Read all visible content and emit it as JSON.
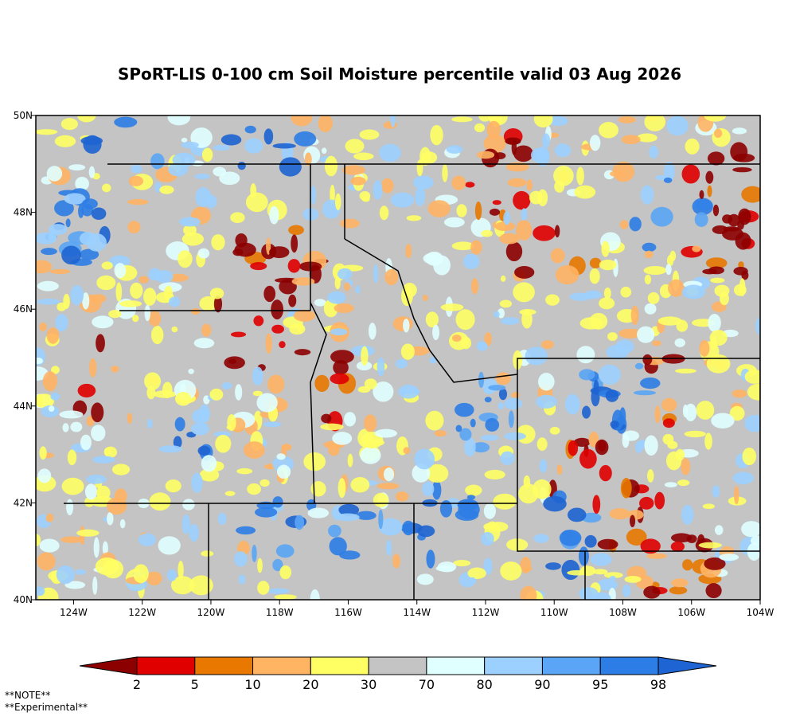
{
  "map": {
    "title": "SPoRT-LIS 0-100 cm Soil Moisture percentile valid 03 Aug 2026",
    "xlim": [
      -125.1,
      -104
    ],
    "ylim": [
      40,
      50
    ],
    "xticks": [
      {
        "value": -124,
        "label": "124W"
      },
      {
        "value": -122,
        "label": "122W"
      },
      {
        "value": -120,
        "label": "120W"
      },
      {
        "value": -118,
        "label": "118W"
      },
      {
        "value": -116,
        "label": "116W"
      },
      {
        "value": -114,
        "label": "114W"
      },
      {
        "value": -112,
        "label": "112W"
      },
      {
        "value": -110,
        "label": "110W"
      },
      {
        "value": -108,
        "label": "108W"
      },
      {
        "value": -106,
        "label": "106W"
      },
      {
        "value": -104,
        "label": "104W"
      }
    ],
    "yticks": [
      {
        "value": 40,
        "label": "40N"
      },
      {
        "value": 42,
        "label": "42N"
      },
      {
        "value": 44,
        "label": "44N"
      },
      {
        "value": 46,
        "label": "46N"
      },
      {
        "value": 48,
        "label": "48N"
      },
      {
        "value": 50,
        "label": "50N"
      }
    ]
  },
  "colorbar": {
    "levels": [
      2,
      5,
      10,
      20,
      30,
      70,
      80,
      90,
      95,
      98
    ],
    "colors": [
      "#8c0000",
      "#e00000",
      "#e87800",
      "#ffb464",
      "#ffff64",
      "#c4c4c4",
      "#e0ffff",
      "#9cd0ff",
      "#5aa5f5",
      "#2d7de6",
      "#1e64d2"
    ]
  },
  "notes": [
    "**NOTE**",
    "**Experimental**"
  ]
}
